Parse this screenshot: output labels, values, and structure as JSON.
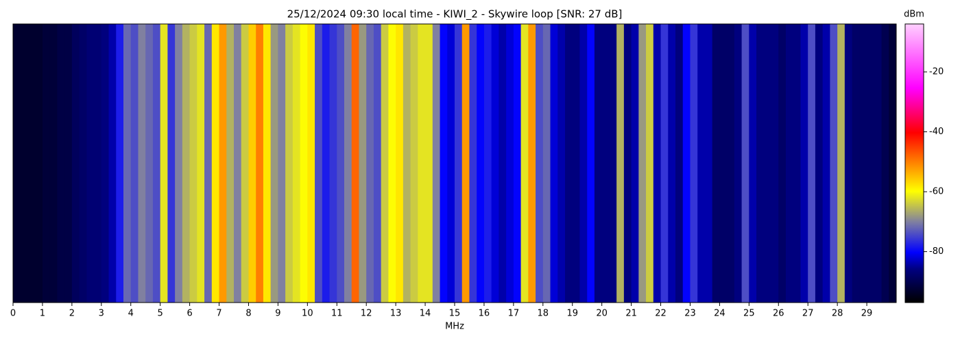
{
  "chart_data": {
    "type": "heatmap",
    "title": "25/12/2024 09:30 local time - KIWI_2 - Skywire loop [SNR: 27 dB]",
    "x_label": "MHz",
    "colorbar_label": "dBm",
    "xlim": [
      0,
      30
    ],
    "xticks": [
      0,
      1,
      2,
      3,
      4,
      5,
      6,
      7,
      8,
      9,
      10,
      11,
      12,
      13,
      14,
      15,
      16,
      17,
      18,
      19,
      20,
      21,
      22,
      23,
      24,
      25,
      26,
      27,
      28,
      29
    ],
    "clim": [
      -97,
      -4
    ],
    "cticks": [
      -20,
      -40,
      -60,
      -80
    ],
    "colorscale": [
      [
        0,
        "#000000"
      ],
      [
        0.12,
        "#000080"
      ],
      [
        0.18,
        "#0000ff"
      ],
      [
        0.29,
        "#8080a0"
      ],
      [
        0.4,
        "#ffff00"
      ],
      [
        0.61,
        "#ff0000"
      ],
      [
        0.77,
        "#ff00ff"
      ],
      [
        1,
        "#ffd0ff"
      ]
    ],
    "bin_width": 0.25,
    "values": [
      -93,
      -93,
      -93,
      -93,
      -92,
      -92,
      -91,
      -91,
      -89,
      -88,
      -87,
      -87,
      -86,
      -84,
      -78,
      -72,
      -74,
      -70,
      -72,
      -74,
      -62,
      -76,
      -70,
      -66,
      -64,
      -62,
      -72,
      -58,
      -52,
      -66,
      -70,
      -64,
      -56,
      -50,
      -58,
      -68,
      -70,
      -64,
      -62,
      -60,
      -58,
      -74,
      -78,
      -76,
      -74,
      -70,
      -48,
      -68,
      -72,
      -74,
      -64,
      -60,
      -58,
      -66,
      -64,
      -62,
      -62,
      -70,
      -80,
      -82,
      -76,
      -52,
      -76,
      -80,
      -78,
      -82,
      -84,
      -82,
      -80,
      -62,
      -52,
      -74,
      -72,
      -82,
      -84,
      -86,
      -86,
      -84,
      -80,
      -86,
      -86,
      -86,
      -66,
      -86,
      -84,
      -68,
      -64,
      -84,
      -76,
      -84,
      -86,
      -80,
      -76,
      -84,
      -84,
      -88,
      -88,
      -88,
      -86,
      -74,
      -84,
      -86,
      -86,
      -86,
      -88,
      -86,
      -86,
      -84,
      -74,
      -86,
      -84,
      -74,
      -66,
      -86,
      -88,
      -88,
      -88,
      -88,
      -90,
      -92
    ]
  }
}
